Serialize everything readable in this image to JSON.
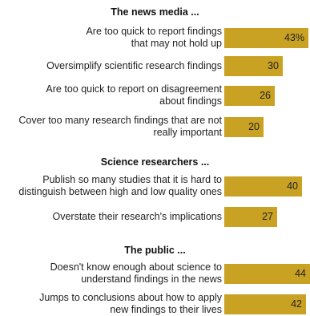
{
  "chart_data": {
    "type": "bar",
    "orientation": "horizontal",
    "bar_color": "#c9a123",
    "unit": "%",
    "groups": [
      {
        "title": "The news media ...",
        "items": [
          {
            "label": "Are too quick to report findings\nthat may not hold up",
            "value": 43,
            "display": "43%"
          },
          {
            "label": "Oversimplify scientific research findings",
            "value": 30,
            "display": "30"
          },
          {
            "label": "Are too quick to report on disagreement\nabout findings",
            "value": 26,
            "display": "26"
          },
          {
            "label": "Cover too many research findings that are not\nreally important",
            "value": 20,
            "display": "20"
          }
        ]
      },
      {
        "title": "Science researchers ...",
        "items": [
          {
            "label": "Publish so many studies that it is hard to\ndistinguish between high and low quality ones",
            "value": 40,
            "display": "40"
          },
          {
            "label": "Overstate their research's implications",
            "value": 27,
            "display": "27"
          }
        ]
      },
      {
        "title": "The public ...",
        "items": [
          {
            "label": "Doesn't know enough about science to\nunderstand findings in the news",
            "value": 44,
            "display": "44"
          },
          {
            "label": "Jumps to conclusions about how to apply\nnew findings to their lives",
            "value": 42,
            "display": "42"
          }
        ]
      }
    ]
  }
}
